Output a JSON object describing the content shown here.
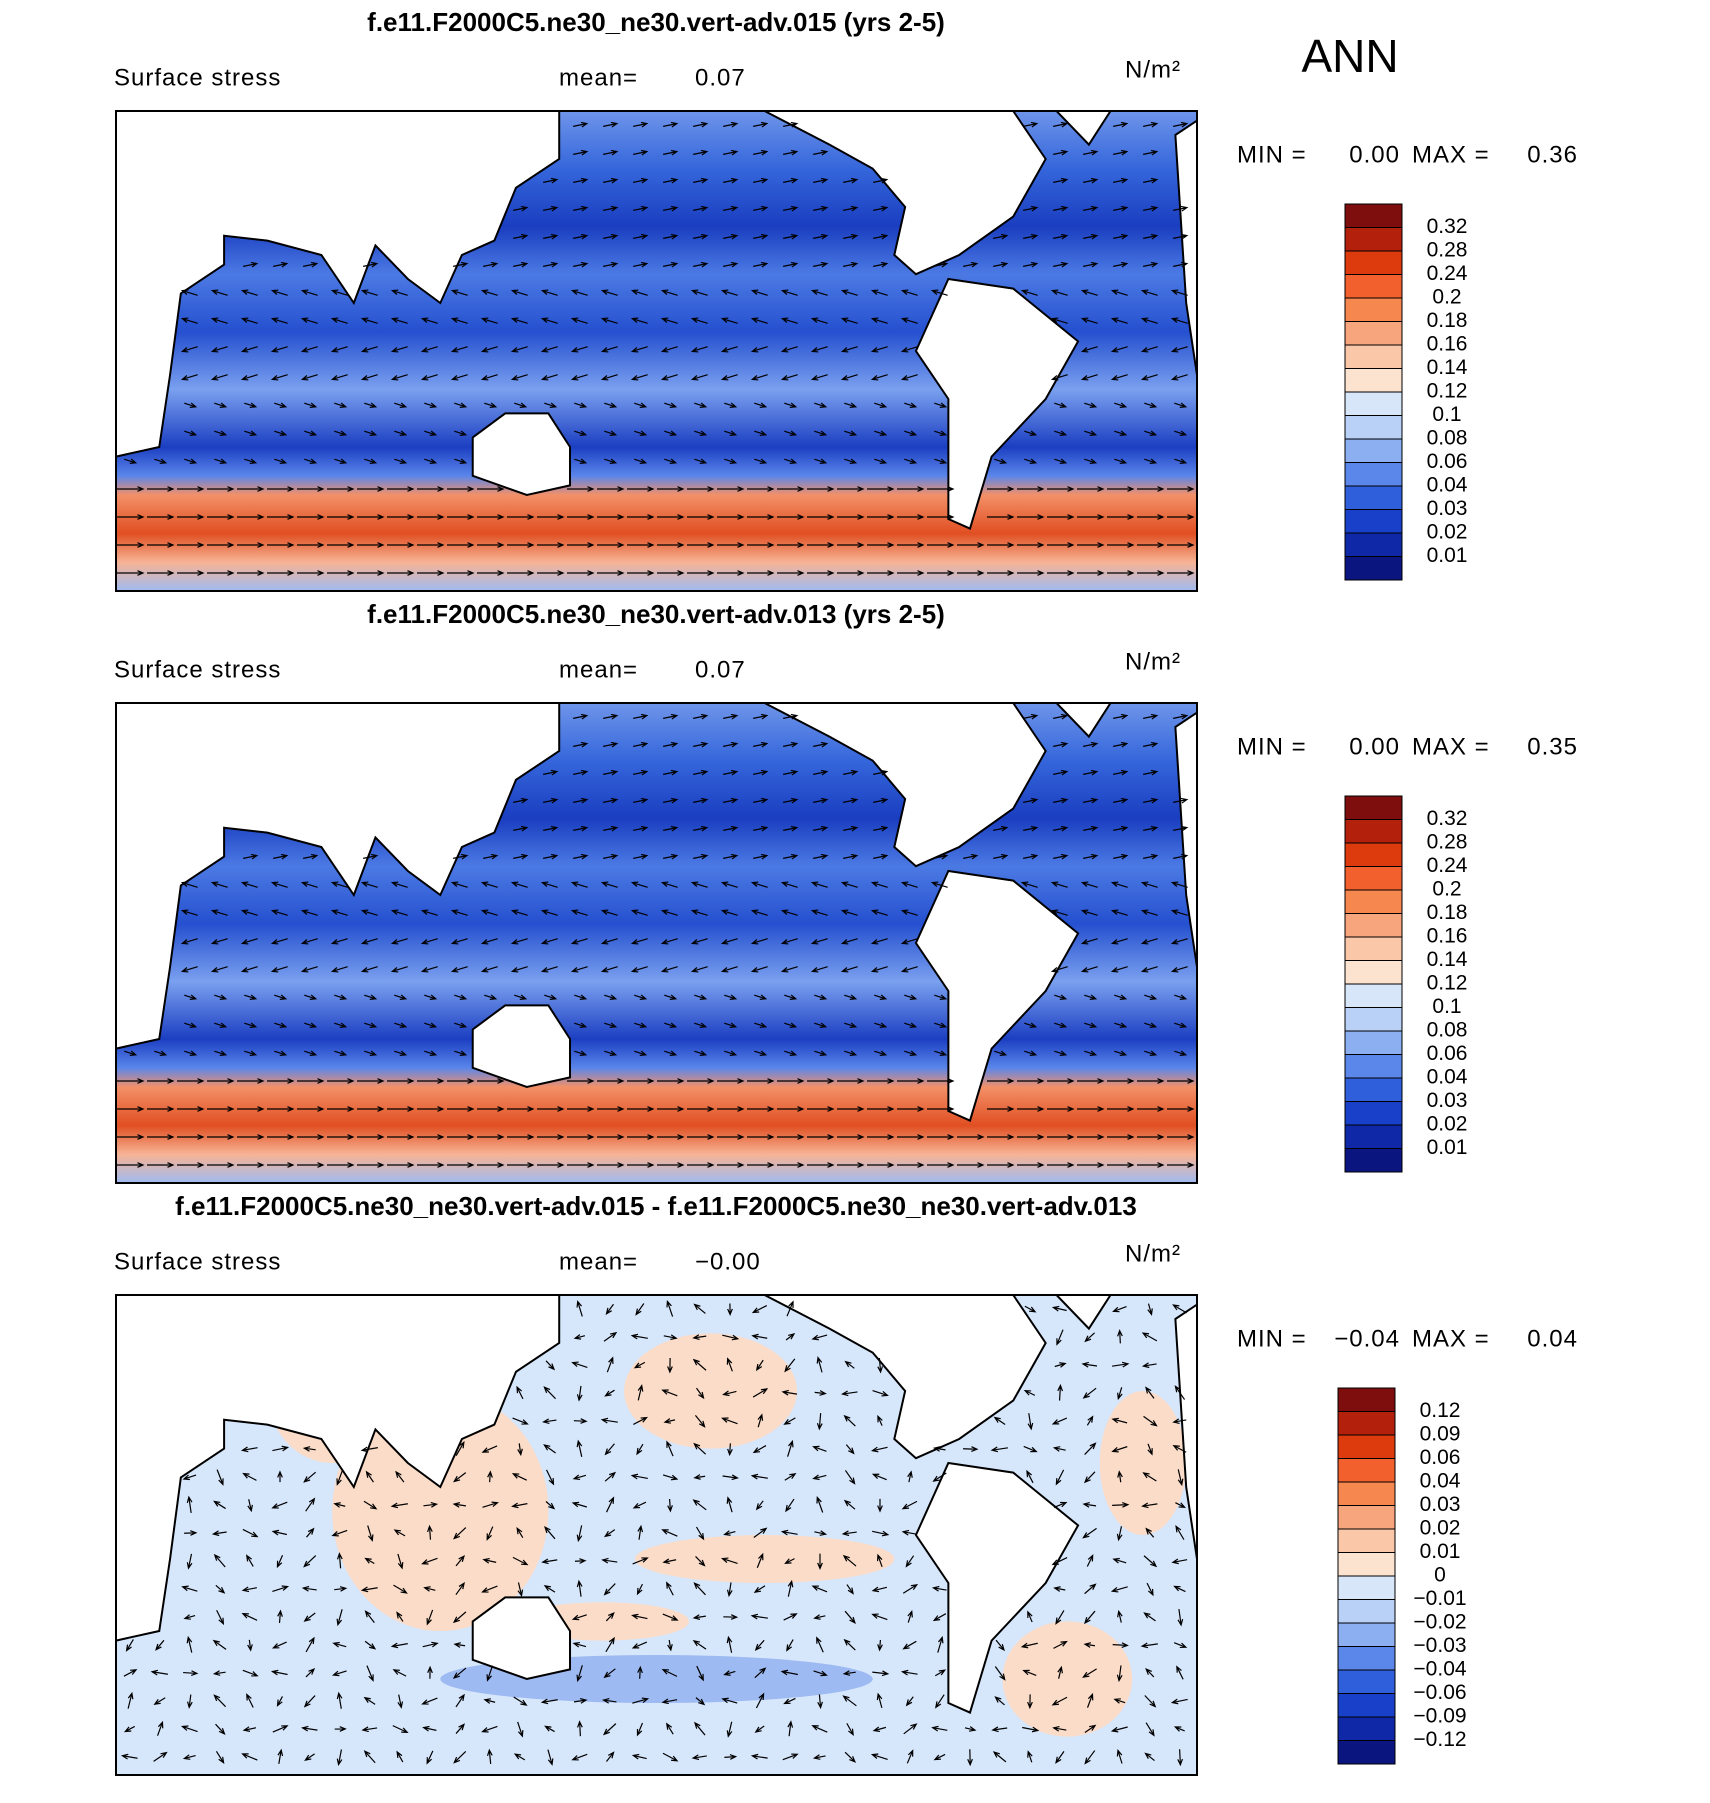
{
  "season": "ANN",
  "panels": [
    {
      "title": "f.e11.F2000C5.ne30_ne30.vert-adv.015 (yrs 2-5)",
      "variable": "Surface stress",
      "mean_label": "mean=",
      "mean": "0.07",
      "units": "N/m²",
      "min_label": "MIN =",
      "min": "0.00",
      "max_label": "MAX =",
      "max": "0.36",
      "colorbar": {
        "labels": [
          "0.32",
          "0.28",
          "0.24",
          "0.2",
          "0.18",
          "0.16",
          "0.14",
          "0.12",
          "0.1",
          "0.08",
          "0.06",
          "0.04",
          "0.03",
          "0.02",
          "0.01"
        ],
        "colors": [
          "#7e0e0e",
          "#b3200c",
          "#dd3a0d",
          "#f2612d",
          "#f6874f",
          "#f7a57c",
          "#fac7a8",
          "#fce3d0",
          "#d8e6fa",
          "#b9d0f7",
          "#8caff2",
          "#5b86ea",
          "#2f5fdb",
          "#1840c8",
          "#0e28a8",
          "#0b1580"
        ]
      }
    },
    {
      "title": "f.e11.F2000C5.ne30_ne30.vert-adv.013 (yrs 2-5)",
      "variable": "Surface stress",
      "mean_label": "mean=",
      "mean": "0.07",
      "units": "N/m²",
      "min_label": "MIN =",
      "min": "0.00",
      "max_label": "MAX =",
      "max": "0.35",
      "colorbar": {
        "labels": [
          "0.32",
          "0.28",
          "0.24",
          "0.2",
          "0.18",
          "0.16",
          "0.14",
          "0.12",
          "0.1",
          "0.08",
          "0.06",
          "0.04",
          "0.03",
          "0.02",
          "0.01"
        ],
        "colors": [
          "#7e0e0e",
          "#b3200c",
          "#dd3a0d",
          "#f2612d",
          "#f6874f",
          "#f7a57c",
          "#fac7a8",
          "#fce3d0",
          "#d8e6fa",
          "#b9d0f7",
          "#8caff2",
          "#5b86ea",
          "#2f5fdb",
          "#1840c8",
          "#0e28a8",
          "#0b1580"
        ]
      }
    },
    {
      "title": "f.e11.F2000C5.ne30_ne30.vert-adv.015 - f.e11.F2000C5.ne30_ne30.vert-adv.013",
      "variable": "Surface stress",
      "mean_label": "mean=",
      "mean": "−0.00",
      "units": "N/m²",
      "min_label": "MIN =",
      "min": "−0.04",
      "max_label": "MAX =",
      "max": "0.04",
      "colorbar": {
        "labels": [
          "0.12",
          "0.09",
          "0.06",
          "0.04",
          "0.03",
          "0.02",
          "0.01",
          "0",
          "−0.01",
          "−0.02",
          "−0.03",
          "−0.04",
          "−0.06",
          "−0.09",
          "−0.12"
        ],
        "colors": [
          "#7e0e0e",
          "#b3200c",
          "#dd3a0d",
          "#f2612d",
          "#f6874f",
          "#f7a57c",
          "#fac7a8",
          "#fce3d0",
          "#d8e6fa",
          "#b9d0f7",
          "#8caff2",
          "#5b86ea",
          "#2f5fdb",
          "#1840c8",
          "#0e28a8",
          "#0b1580"
        ]
      }
    }
  ]
}
